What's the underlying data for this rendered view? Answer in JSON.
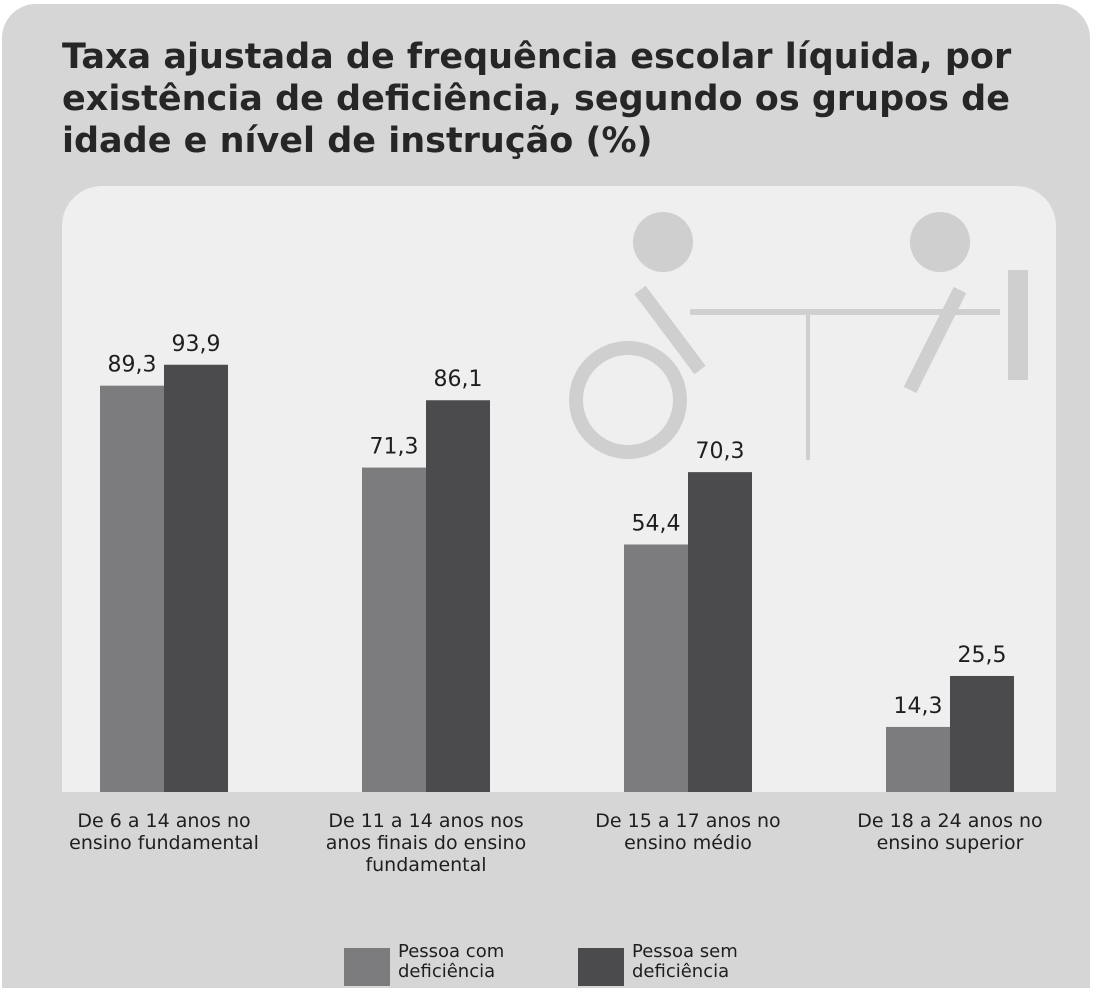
{
  "chart_data": {
    "type": "bar",
    "title": "Taxa ajustada de frequência escolar líquida, por existência de deficiência, segundo os grupos de idade e nível de instrução (%)",
    "categories": [
      "De 6 a 14 anos no ensino fundamental",
      "De 11 a 14 anos nos anos finais do ensino fundamental",
      "De 15 a 17 anos no ensino médio",
      "De 18 a 24 anos no ensino superior"
    ],
    "series": [
      {
        "name": "Pessoa com deficiência",
        "color": "#7c7c7e",
        "values": [
          89.3,
          71.3,
          54.4,
          14.3
        ],
        "value_labels": [
          "89,3",
          "71,3",
          "54,4",
          "14,3"
        ]
      },
      {
        "name": "Pessoa sem deficiência",
        "color": "#4b4b4d",
        "values": [
          93.9,
          86.1,
          70.3,
          25.5
        ],
        "value_labels": [
          "93,9",
          "86,1",
          "70,3",
          "25,5"
        ]
      }
    ]
  }
}
